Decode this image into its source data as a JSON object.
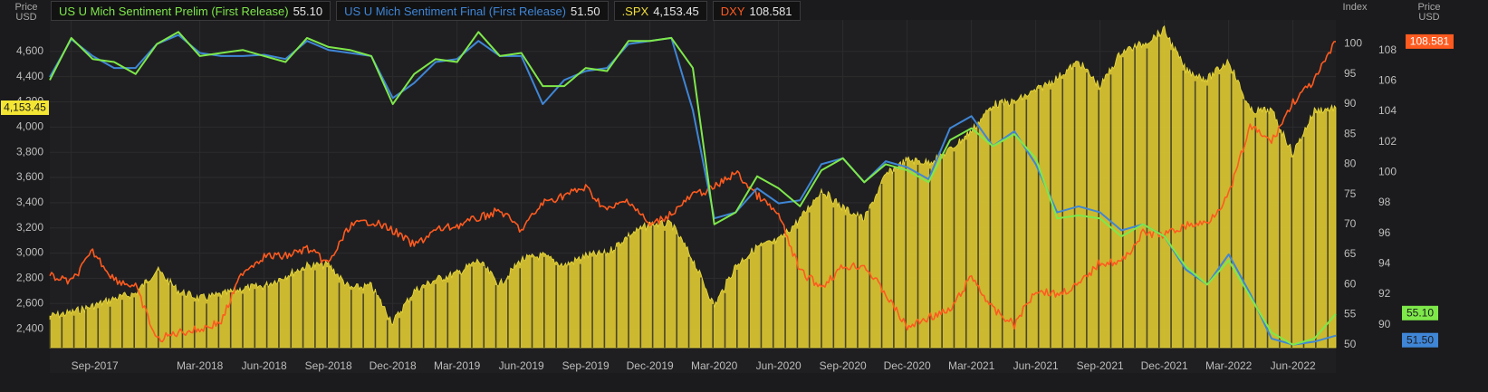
{
  "left_axis_title": [
    "Price",
    "USD"
  ],
  "right_axis_title_index": "Index",
  "right_axis_title_price": [
    "Price",
    "USD"
  ],
  "legend": [
    {
      "name": "US U Mich Sentiment Prelim (First Release)",
      "value": "55.10",
      "color": "#7ee84a"
    },
    {
      "name": "US U Mich Sentiment Final (First Release)",
      "value": "51.50",
      "color": "#3f86d6"
    },
    {
      "name": ".SPX",
      "value": "4,153.45",
      "color": "#f0dc3c"
    },
    {
      "name": "DXY",
      "value": "108.581",
      "color": "#ff5a1f"
    }
  ],
  "badges": {
    "spx": "4,153.45",
    "dxy": "108.581",
    "prelim": "55.10",
    "final": "51.50"
  },
  "chart_data": {
    "type": "line",
    "x_tick_labels": [
      "Sep-2017",
      "Mar-2018",
      "Jun-2018",
      "Sep-2018",
      "Dec-2018",
      "Mar-2019",
      "Jun-2019",
      "Sep-2019",
      "Dec-2019",
      "Mar-2020",
      "Jun-2020",
      "Sep-2020",
      "Dec-2020",
      "Mar-2021",
      "Jun-2021",
      "Sep-2021",
      "Dec-2021",
      "Mar-2022",
      "Jun-2022"
    ],
    "x_tick_dates": [
      "2017-09",
      "2018-03",
      "2018-06",
      "2018-09",
      "2018-12",
      "2019-03",
      "2019-06",
      "2019-09",
      "2019-12",
      "2020-03",
      "2020-06",
      "2020-09",
      "2020-12",
      "2021-03",
      "2021-06",
      "2021-09",
      "2021-12",
      "2022-03",
      "2022-06"
    ],
    "x_range": [
      "2017-08",
      "2022-08"
    ],
    "axes": {
      "spx_price_usd": {
        "ticks": [
          "2,400",
          "2,600",
          "2,800",
          "3,000",
          "3,200",
          "3,400",
          "3,600",
          "3,800",
          "4,000",
          "4,200",
          "4,400",
          "4,600"
        ],
        "range": [
          2250,
          4850
        ]
      },
      "sentiment_index": {
        "ticks": [
          "50",
          "55",
          "60",
          "65",
          "70",
          "75",
          "80",
          "85",
          "90",
          "95",
          "100"
        ],
        "range": [
          49.5,
          104
        ]
      },
      "dxy_price_usd": {
        "ticks": [
          "90",
          "92",
          "94",
          "96",
          "98",
          "100",
          "102",
          "104",
          "106",
          "108"
        ],
        "range": [
          88.5,
          110
        ]
      }
    },
    "series": [
      {
        "name": "US U Mich Sentiment Prelim (First Release)",
        "axis": "sentiment_index",
        "color": "#7ee84a",
        "x": [
          "2017-08",
          "2017-09",
          "2017-10",
          "2017-11",
          "2017-12",
          "2018-01",
          "2018-02",
          "2018-03",
          "2018-04",
          "2018-05",
          "2018-06",
          "2018-07",
          "2018-08",
          "2018-09",
          "2018-10",
          "2018-11",
          "2018-12",
          "2019-01",
          "2019-02",
          "2019-03",
          "2019-04",
          "2019-05",
          "2019-06",
          "2019-07",
          "2019-08",
          "2019-09",
          "2019-10",
          "2019-11",
          "2019-12",
          "2020-01",
          "2020-02",
          "2020-03",
          "2020-04",
          "2020-05",
          "2020-06",
          "2020-07",
          "2020-08",
          "2020-09",
          "2020-10",
          "2020-11",
          "2020-12",
          "2021-01",
          "2021-02",
          "2021-03",
          "2021-04",
          "2021-05",
          "2021-06",
          "2021-07",
          "2021-08",
          "2021-09",
          "2021-10",
          "2021-11",
          "2021-12",
          "2022-01",
          "2022-02",
          "2022-03",
          "2022-04",
          "2022-05",
          "2022-06",
          "2022-07",
          "2022-08"
        ],
        "y": [
          94.0,
          101.0,
          97.5,
          97.0,
          95.0,
          100.0,
          102.0,
          98.0,
          98.5,
          99.0,
          98.0,
          97.0,
          101.0,
          99.5,
          99.0,
          98.0,
          90.0,
          95.0,
          97.5,
          97.0,
          102.0,
          98.0,
          98.5,
          93.0,
          93.0,
          96.0,
          95.5,
          100.5,
          100.5,
          101.0,
          96.0,
          70.0,
          72.0,
          78.0,
          76.0,
          73.0,
          79.0,
          81.0,
          77.0,
          80.0,
          79.0,
          77.0,
          84.0,
          86.0,
          83.0,
          85.0,
          81.0,
          71.0,
          71.5,
          71.0,
          68.0,
          70.0,
          68.0,
          63.0,
          60.0,
          64.0,
          58.0,
          52.0,
          50.0,
          51.0,
          55.1
        ]
      },
      {
        "name": "US U Mich Sentiment Final (First Release)",
        "axis": "sentiment_index",
        "color": "#3f86d6",
        "x": [
          "2017-08",
          "2017-09",
          "2017-10",
          "2017-11",
          "2017-12",
          "2018-01",
          "2018-02",
          "2018-03",
          "2018-04",
          "2018-05",
          "2018-06",
          "2018-07",
          "2018-08",
          "2018-09",
          "2018-10",
          "2018-11",
          "2018-12",
          "2019-01",
          "2019-02",
          "2019-03",
          "2019-04",
          "2019-05",
          "2019-06",
          "2019-07",
          "2019-08",
          "2019-09",
          "2019-10",
          "2019-11",
          "2019-12",
          "2020-01",
          "2020-02",
          "2020-03",
          "2020-04",
          "2020-05",
          "2020-06",
          "2020-07",
          "2020-08",
          "2020-09",
          "2020-10",
          "2020-11",
          "2020-12",
          "2021-01",
          "2021-02",
          "2021-03",
          "2021-04",
          "2021-05",
          "2021-06",
          "2021-07",
          "2021-08",
          "2021-09",
          "2021-10",
          "2021-11",
          "2021-12",
          "2022-01",
          "2022-02",
          "2022-03",
          "2022-04",
          "2022-05",
          "2022-06",
          "2022-07",
          "2022-08"
        ],
        "y": [
          94.5,
          100.8,
          98.0,
          96.0,
          96.0,
          100.0,
          101.5,
          98.5,
          98.0,
          98.0,
          98.2,
          97.5,
          100.5,
          99.0,
          98.5,
          98.0,
          91.0,
          93.5,
          97.0,
          97.5,
          100.5,
          98.0,
          98.0,
          90.0,
          94.0,
          95.5,
          96.0,
          100.0,
          100.5,
          101.0,
          89.0,
          71.0,
          72.0,
          76.0,
          73.5,
          74.0,
          80.0,
          81.0,
          77.0,
          80.5,
          79.5,
          77.5,
          86.0,
          88.0,
          83.0,
          85.5,
          80.0,
          72.0,
          73.0,
          72.0,
          69.0,
          70.0,
          68.0,
          62.5,
          60.0,
          65.0,
          58.5,
          51.0,
          50.0,
          50.5,
          51.5
        ]
      },
      {
        "name": ".SPX",
        "axis": "spx_price_usd",
        "color": "#f0dc3c",
        "x": [
          "2017-08",
          "2017-09",
          "2017-10",
          "2017-11",
          "2017-12",
          "2018-01",
          "2018-02",
          "2018-03",
          "2018-04",
          "2018-05",
          "2018-06",
          "2018-07",
          "2018-08",
          "2018-09",
          "2018-10",
          "2018-11",
          "2018-12",
          "2019-01",
          "2019-02",
          "2019-03",
          "2019-04",
          "2019-05",
          "2019-06",
          "2019-07",
          "2019-08",
          "2019-09",
          "2019-10",
          "2019-11",
          "2019-12",
          "2020-01",
          "2020-02",
          "2020-03",
          "2020-04",
          "2020-05",
          "2020-06",
          "2020-07",
          "2020-08",
          "2020-09",
          "2020-10",
          "2020-11",
          "2020-12",
          "2021-01",
          "2021-02",
          "2021-03",
          "2021-04",
          "2021-05",
          "2021-06",
          "2021-07",
          "2021-08",
          "2021-09",
          "2021-10",
          "2021-11",
          "2021-12",
          "2022-01",
          "2022-02",
          "2022-03",
          "2022-04",
          "2022-05",
          "2022-06",
          "2022-07",
          "2022-08"
        ],
        "y": [
          2500,
          2530,
          2580,
          2640,
          2680,
          2870,
          2700,
          2640,
          2670,
          2720,
          2740,
          2820,
          2900,
          2910,
          2720,
          2740,
          2450,
          2700,
          2790,
          2840,
          2940,
          2750,
          2950,
          2980,
          2900,
          2980,
          3000,
          3140,
          3230,
          3230,
          2950,
          2580,
          2900,
          3050,
          3100,
          3270,
          3500,
          3360,
          3270,
          3620,
          3740,
          3720,
          3820,
          3970,
          4180,
          4200,
          4290,
          4390,
          4520,
          4320,
          4600,
          4660,
          4770,
          4450,
          4380,
          4530,
          4130,
          4130,
          3790,
          4130,
          4153.45
        ]
      },
      {
        "name": "DXY",
        "axis": "dxy_price_usd",
        "color": "#ff5a1f",
        "x": [
          "2017-08",
          "2017-09",
          "2017-10",
          "2017-11",
          "2017-12",
          "2018-01",
          "2018-02",
          "2018-03",
          "2018-04",
          "2018-05",
          "2018-06",
          "2018-07",
          "2018-08",
          "2018-09",
          "2018-10",
          "2018-11",
          "2018-12",
          "2019-01",
          "2019-02",
          "2019-03",
          "2019-04",
          "2019-05",
          "2019-06",
          "2019-07",
          "2019-08",
          "2019-09",
          "2019-10",
          "2019-11",
          "2019-12",
          "2020-01",
          "2020-02",
          "2020-03",
          "2020-04",
          "2020-05",
          "2020-06",
          "2020-07",
          "2020-08",
          "2020-09",
          "2020-10",
          "2020-11",
          "2020-12",
          "2021-01",
          "2021-02",
          "2021-03",
          "2021-04",
          "2021-05",
          "2021-06",
          "2021-07",
          "2021-08",
          "2021-09",
          "2021-10",
          "2021-11",
          "2021-12",
          "2022-01",
          "2022-02",
          "2022-03",
          "2022-04",
          "2022-05",
          "2022-06",
          "2022-07",
          "2022-08"
        ],
        "y": [
          93.2,
          92.8,
          94.8,
          93.0,
          92.5,
          89.0,
          89.5,
          89.7,
          90.2,
          93.5,
          94.5,
          94.5,
          95.0,
          94.0,
          96.5,
          96.8,
          96.2,
          95.2,
          96.2,
          96.5,
          97.0,
          97.5,
          96.2,
          98.0,
          98.5,
          99.0,
          97.5,
          98.2,
          96.5,
          97.3,
          98.5,
          99.0,
          100.0,
          98.5,
          97.2,
          93.5,
          92.5,
          93.8,
          93.9,
          92.0,
          89.8,
          90.5,
          90.9,
          93.2,
          91.0,
          90.0,
          92.3,
          92.0,
          92.6,
          94.1,
          94.1,
          96.0,
          95.9,
          96.5,
          96.7,
          98.5,
          103.0,
          102.0,
          104.6,
          106.0,
          108.581
        ]
      }
    ]
  }
}
